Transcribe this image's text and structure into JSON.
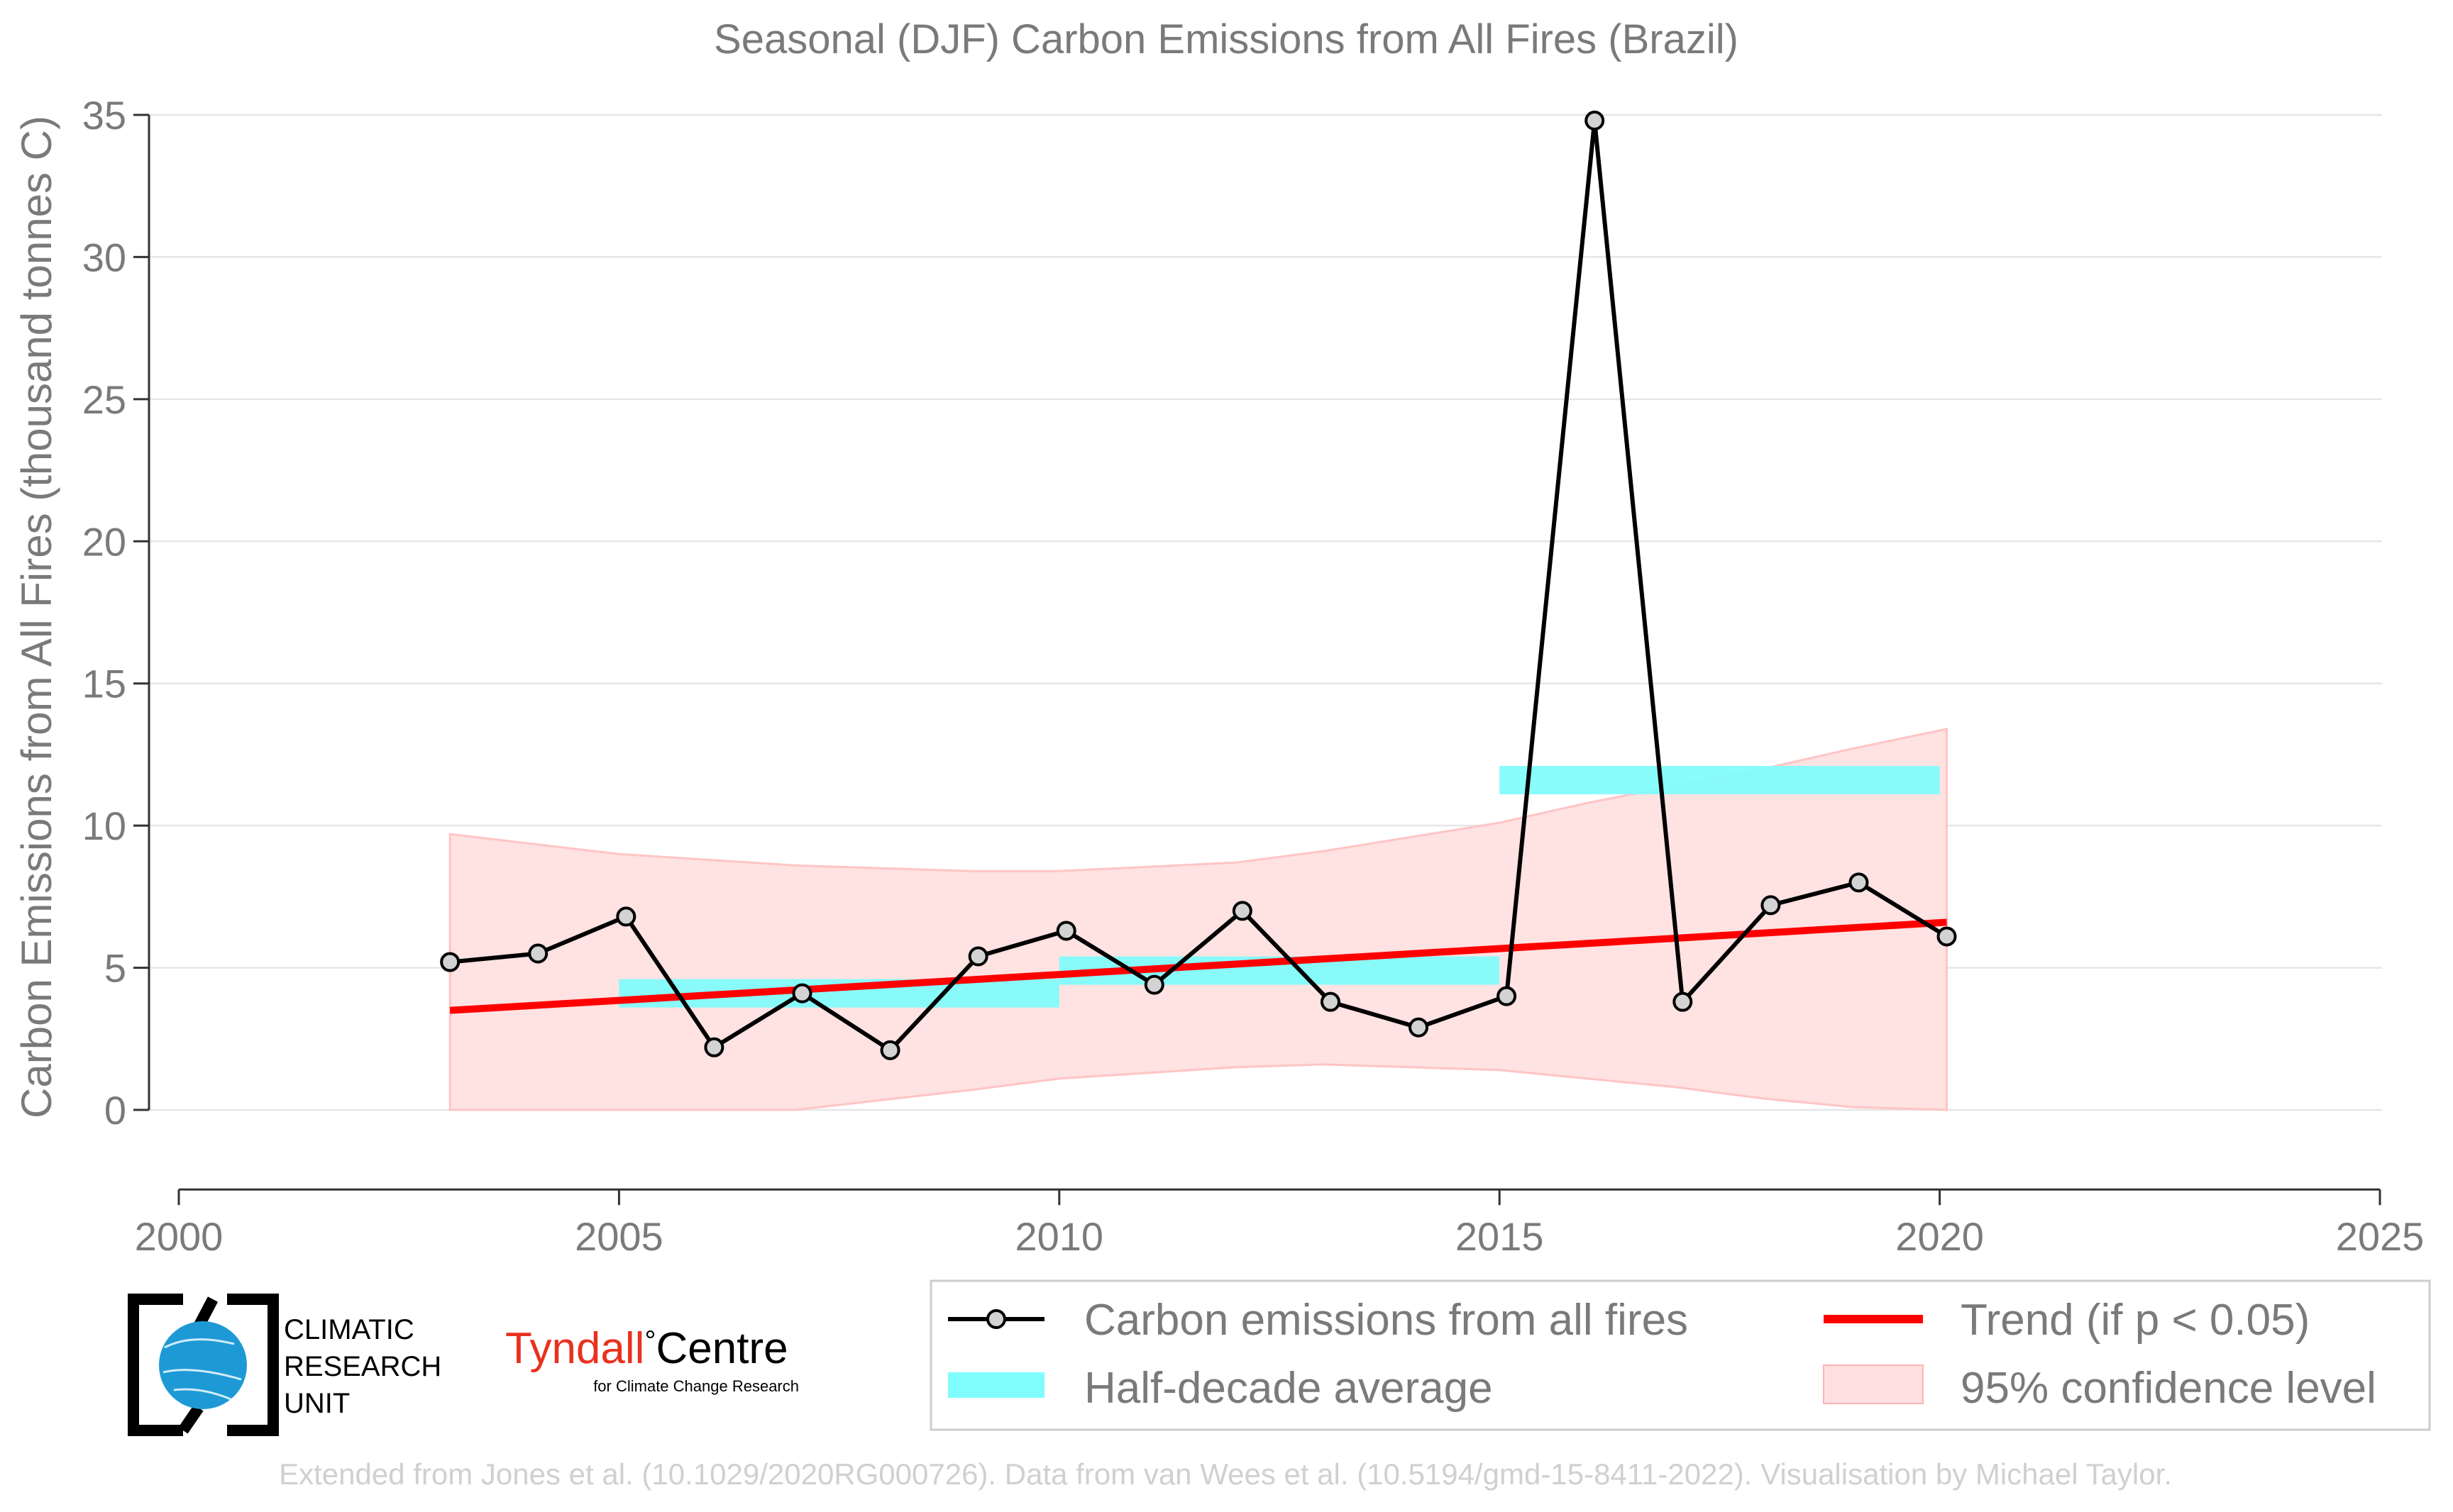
{
  "chart_data": {
    "type": "line",
    "title": "Seasonal (DJF) Carbon Emissions from All Fires (Brazil)",
    "xlabel": "",
    "ylabel": "Carbon Emissions from All Fires (thousand tonnes C)",
    "xlim": [
      2000,
      2025
    ],
    "ylim": [
      -2.8,
      35.5
    ],
    "x_ticks": [
      2000,
      2005,
      2010,
      2015,
      2020,
      2025
    ],
    "y_ticks": [
      0,
      5,
      10,
      15,
      20,
      25,
      30,
      35
    ],
    "grid": "horizontal",
    "legend_position": "bottom-right",
    "series": [
      {
        "name": "Carbon emissions from all fires",
        "color": "#000000",
        "marker_fill": "#d3d3d3",
        "x": [
          2003.08,
          2004.08,
          2005.08,
          2006.08,
          2007.08,
          2008.08,
          2009.08,
          2010.08,
          2011.08,
          2012.08,
          2013.08,
          2014.08,
          2015.08,
          2016.08,
          2017.08,
          2018.08,
          2019.08,
          2020.08
        ],
        "y": [
          5.2,
          5.5,
          6.8,
          2.2,
          4.1,
          2.1,
          5.4,
          6.3,
          4.4,
          7.0,
          3.8,
          2.9,
          4.0,
          34.8,
          3.8,
          7.2,
          8.0,
          6.1
        ]
      },
      {
        "name": "Trend (if p < 0.05)",
        "color": "#ff0000",
        "x": [
          2003.08,
          2020.08
        ],
        "y": [
          3.5,
          6.6
        ]
      },
      {
        "name": "Half-decade average",
        "color": "#7ffcfc",
        "segments": [
          {
            "x_start": 2005,
            "x_end": 2010,
            "y": 4.1
          },
          {
            "x_start": 2010,
            "x_end": 2015,
            "y": 4.9
          },
          {
            "x_start": 2015,
            "x_end": 2020,
            "y": 11.6
          }
        ]
      },
      {
        "name": "95% confidence level",
        "color": "#ffe0e0",
        "x": [
          2003.08,
          2005,
          2007,
          2009,
          2010,
          2012,
          2013,
          2014,
          2015,
          2016,
          2017,
          2018,
          2019,
          2020.08
        ],
        "upper": [
          9.7,
          9.0,
          8.6,
          8.4,
          8.4,
          8.7,
          9.1,
          9.6,
          10.1,
          10.8,
          11.4,
          12.0,
          12.7,
          13.4
        ],
        "lower": [
          0.0,
          0.0,
          0.0,
          0.7,
          1.1,
          1.5,
          1.6,
          1.5,
          1.4,
          1.1,
          0.8,
          0.4,
          0.1,
          0.0
        ]
      }
    ]
  },
  "legend": {
    "items": [
      {
        "label": "Carbon emissions from all fires",
        "key": "line-marker",
        "color": "#000000"
      },
      {
        "label": "Trend (if p < 0.05)",
        "key": "line",
        "color": "#ff0000"
      },
      {
        "label": "Half-decade average",
        "key": "band",
        "color": "#7ffcfc"
      },
      {
        "label": "95% confidence level",
        "key": "patch",
        "color": "#ffe0e0"
      }
    ]
  },
  "logos": {
    "cru": {
      "line1": "CLIMATIC",
      "line2": "RESEARCH",
      "line3": "UNIT",
      "globe_color": "#1d9ad6"
    },
    "tyndall": {
      "word1": "Tyndall",
      "degree": "°",
      "word2": "Centre",
      "subtitle": "for Climate Change Research",
      "accent": "#e8321e"
    }
  },
  "credit": "Extended from Jones et al. (10.1029/2020RG000726). Data from van Wees et al. (10.5194/gmd-15-8411-2022). Visualisation by Michael Taylor."
}
